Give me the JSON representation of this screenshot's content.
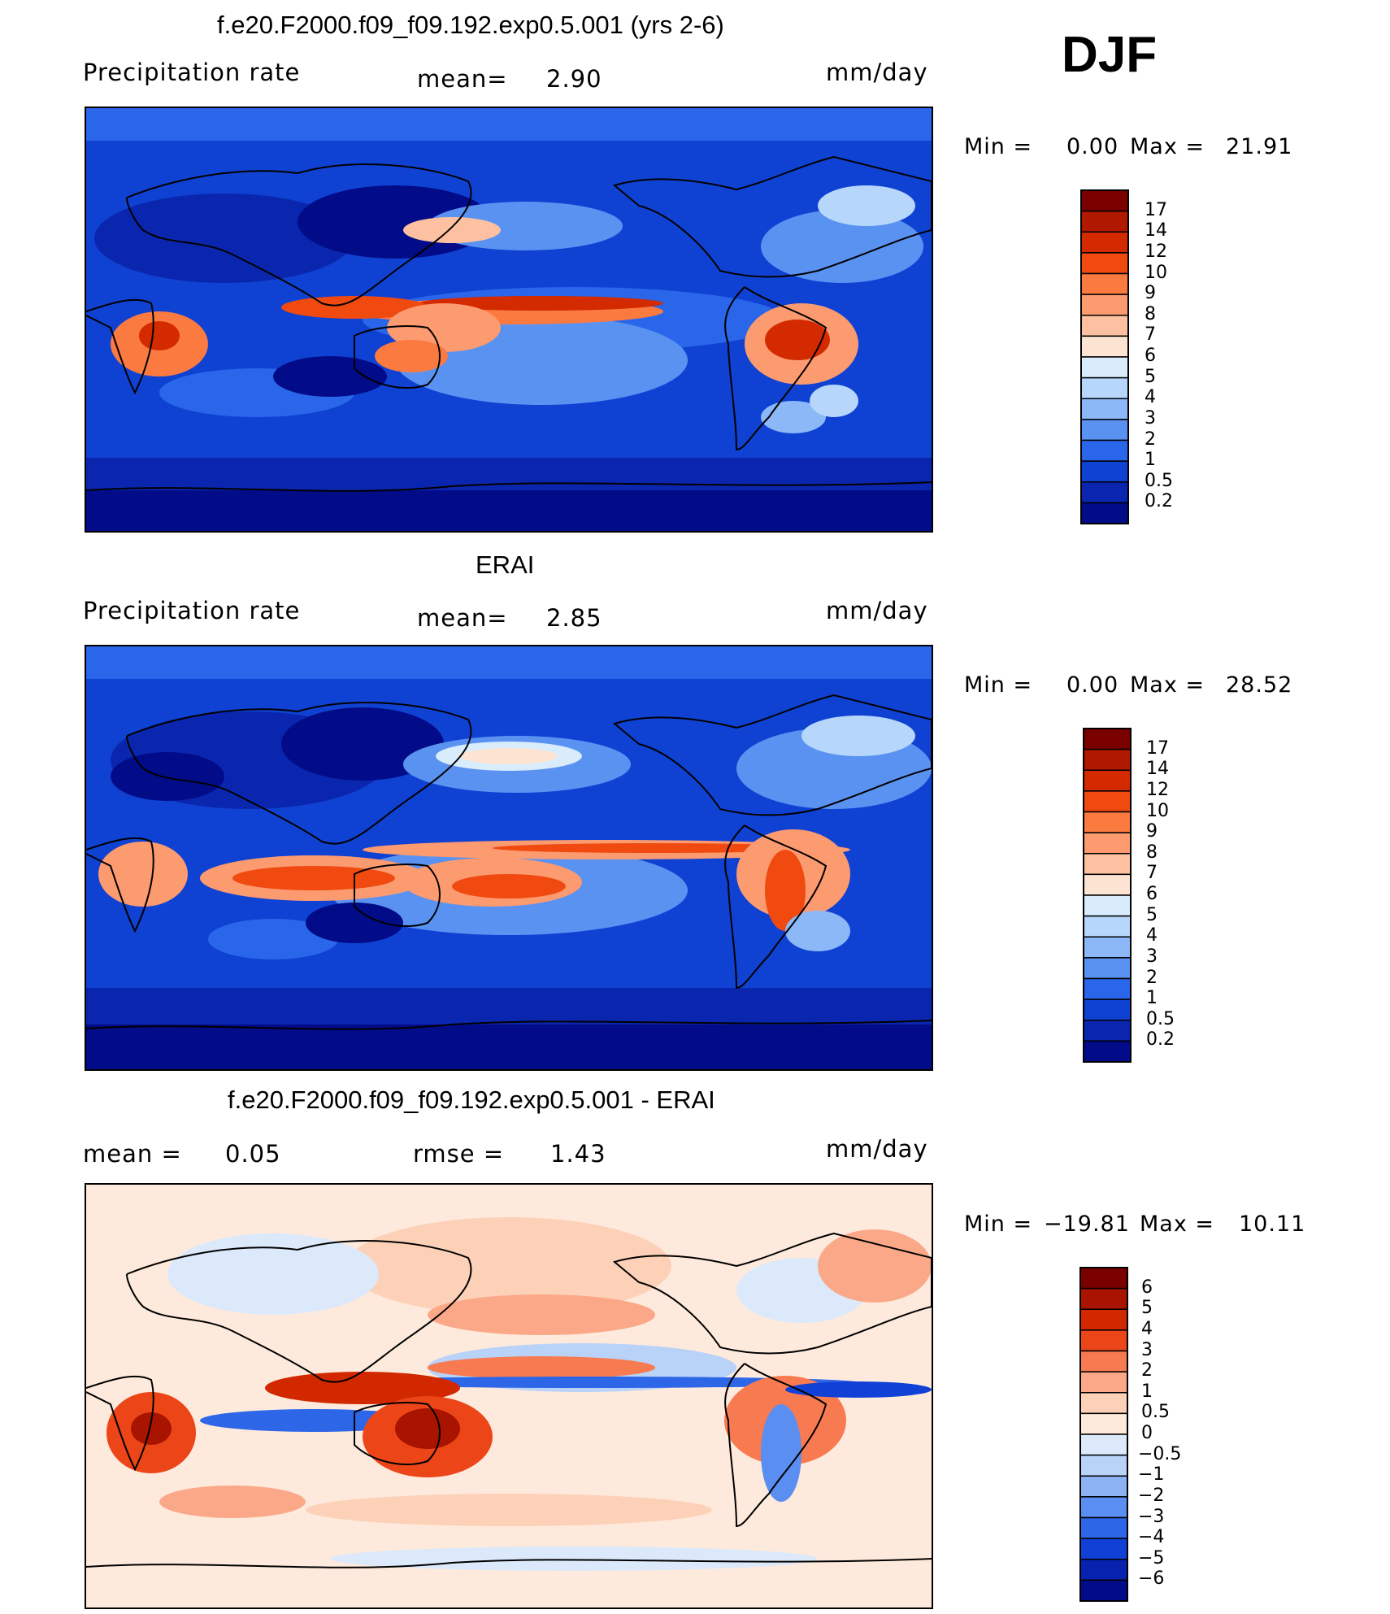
{
  "season": "DJF",
  "panels": [
    {
      "title": "f.e20.F2000.f09_f09.192.exp0.5.001 (yrs 2-6)",
      "left_label": "Precipitation  rate",
      "center_label": "mean=",
      "center_value": "2.90",
      "units": "mm/day",
      "min_label": "Min  =",
      "min_value": "0.00",
      "max_label": "Max  =",
      "max_value": "21.91",
      "colorbar": {
        "labels": [
          "17",
          "14",
          "12",
          "10",
          "9",
          "8",
          "7",
          "6",
          "5",
          "4",
          "3",
          "2",
          "1",
          "0.5",
          "0.2"
        ],
        "colors": [
          "#7a0000",
          "#b01800",
          "#d42a00",
          "#f04a10",
          "#fb7a40",
          "#fc9a70",
          "#fdc0a0",
          "#fde4d2",
          "#d8ecfc",
          "#b6d6fb",
          "#8cb8f8",
          "#5a92f2",
          "#2a66ea",
          "#0f42d2",
          "#0a26ae",
          "#020c88"
        ]
      }
    },
    {
      "title": "ERAI",
      "left_label": "Precipitation  rate",
      "center_label": "mean=",
      "center_value": "2.85",
      "units": "mm/day",
      "min_label": "Min  =",
      "min_value": "0.00",
      "max_label": "Max  =",
      "max_value": "28.52",
      "colorbar": {
        "labels": [
          "17",
          "14",
          "12",
          "10",
          "9",
          "8",
          "7",
          "6",
          "5",
          "4",
          "3",
          "2",
          "1",
          "0.5",
          "0.2"
        ],
        "colors": [
          "#7a0000",
          "#b01800",
          "#d42a00",
          "#f04a10",
          "#fb7a40",
          "#fc9a70",
          "#fdc0a0",
          "#fde4d2",
          "#d8ecfc",
          "#b6d6fb",
          "#8cb8f8",
          "#5a92f2",
          "#2a66ea",
          "#0f42d2",
          "#0a26ae",
          "#020c88"
        ]
      }
    },
    {
      "title": "f.e20.F2000.f09_f09.192.exp0.5.001 - ERAI",
      "left_label": "mean  =",
      "left_value": "0.05",
      "center_label": "rmse  =",
      "center_value": "1.43",
      "units": "mm/day",
      "min_label": "Min  =",
      "min_value": "−19.81",
      "max_label": "Max  =",
      "max_value": "10.11",
      "colorbar": {
        "labels": [
          "6",
          "5",
          "4",
          "3",
          "2",
          "1",
          "0.5",
          "0",
          "−0.5",
          "−1",
          "−2",
          "−3",
          "−4",
          "−5",
          "−6"
        ],
        "colors": [
          "#7a0000",
          "#a81400",
          "#d22800",
          "#ec4618",
          "#f87a50",
          "#fba888",
          "#fdd0b8",
          "#feeadc",
          "#dbe9fb",
          "#b8d2f8",
          "#8cb2f4",
          "#5a8ef0",
          "#2e66e8",
          "#1040d6",
          "#0822b0",
          "#020c88"
        ]
      }
    }
  ]
}
